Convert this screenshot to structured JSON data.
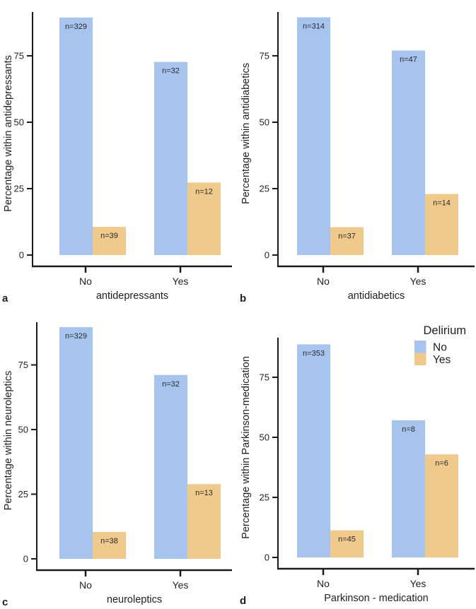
{
  "figure_title": "",
  "colors": {
    "delirium_no": "#a7c4ef",
    "delirium_yes": "#f0ca8c",
    "axis": "#1a1a1a",
    "text": "#1f1f1f"
  },
  "legend": {
    "title": "Delirium",
    "items": [
      {
        "label": "No",
        "color_key": "delirium_no"
      },
      {
        "label": "Yes",
        "color_key": "delirium_yes"
      }
    ]
  },
  "chart_data": [
    {
      "panel_label": "a",
      "type": "bar",
      "title": "",
      "xlabel": "antidepressants",
      "ylabel": "Percentage within antidepressants",
      "categories": [
        "No",
        "Yes"
      ],
      "yticks": [
        0,
        25,
        50,
        75
      ],
      "ylim": [
        0,
        93
      ],
      "grid": false,
      "series": [
        {
          "name": "No",
          "color_key": "delirium_no",
          "values": [
            89.4,
            72.7
          ],
          "bar_labels": [
            "n=329",
            "n=32"
          ]
        },
        {
          "name": "Yes",
          "color_key": "delirium_yes",
          "values": [
            10.6,
            27.3
          ],
          "bar_labels": [
            "n=39",
            "n=12"
          ]
        }
      ]
    },
    {
      "panel_label": "b",
      "type": "bar",
      "title": "",
      "xlabel": "antidiabetics",
      "ylabel": "Percentage within antidiabetics",
      "categories": [
        "No",
        "Yes"
      ],
      "yticks": [
        0,
        25,
        50,
        75
      ],
      "ylim": [
        0,
        93
      ],
      "grid": false,
      "series": [
        {
          "name": "No",
          "color_key": "delirium_no",
          "values": [
            89.5,
            77.0
          ],
          "bar_labels": [
            "n=314",
            "n=47"
          ]
        },
        {
          "name": "Yes",
          "color_key": "delirium_yes",
          "values": [
            10.5,
            23.0
          ],
          "bar_labels": [
            "n=37",
            "n=14"
          ]
        }
      ]
    },
    {
      "panel_label": "c",
      "type": "bar",
      "title": "",
      "xlabel": "neuroleptics",
      "ylabel": "Percentage within neuroleptics",
      "categories": [
        "No",
        "Yes"
      ],
      "yticks": [
        0,
        25,
        50,
        75
      ],
      "ylim": [
        0,
        93
      ],
      "grid": false,
      "series": [
        {
          "name": "No",
          "color_key": "delirium_no",
          "values": [
            89.6,
            71.1
          ],
          "bar_labels": [
            "n=329",
            "n=32"
          ]
        },
        {
          "name": "Yes",
          "color_key": "delirium_yes",
          "values": [
            10.4,
            28.9
          ],
          "bar_labels": [
            "n=38",
            "n=13"
          ]
        }
      ]
    },
    {
      "panel_label": "d",
      "type": "bar",
      "title": "",
      "xlabel": "Parkinson - medication",
      "ylabel": "Percentage within Parkinson-medication",
      "categories": [
        "No",
        "Yes"
      ],
      "yticks": [
        0,
        25,
        50,
        75
      ],
      "ylim": [
        0,
        93
      ],
      "grid": false,
      "has_legend": true,
      "series": [
        {
          "name": "No",
          "color_key": "delirium_no",
          "values": [
            88.7,
            57.1
          ],
          "bar_labels": [
            "n=353",
            "n=8"
          ]
        },
        {
          "name": "Yes",
          "color_key": "delirium_yes",
          "values": [
            11.3,
            42.9
          ],
          "bar_labels": [
            "n=45",
            "n=6"
          ]
        }
      ]
    }
  ]
}
